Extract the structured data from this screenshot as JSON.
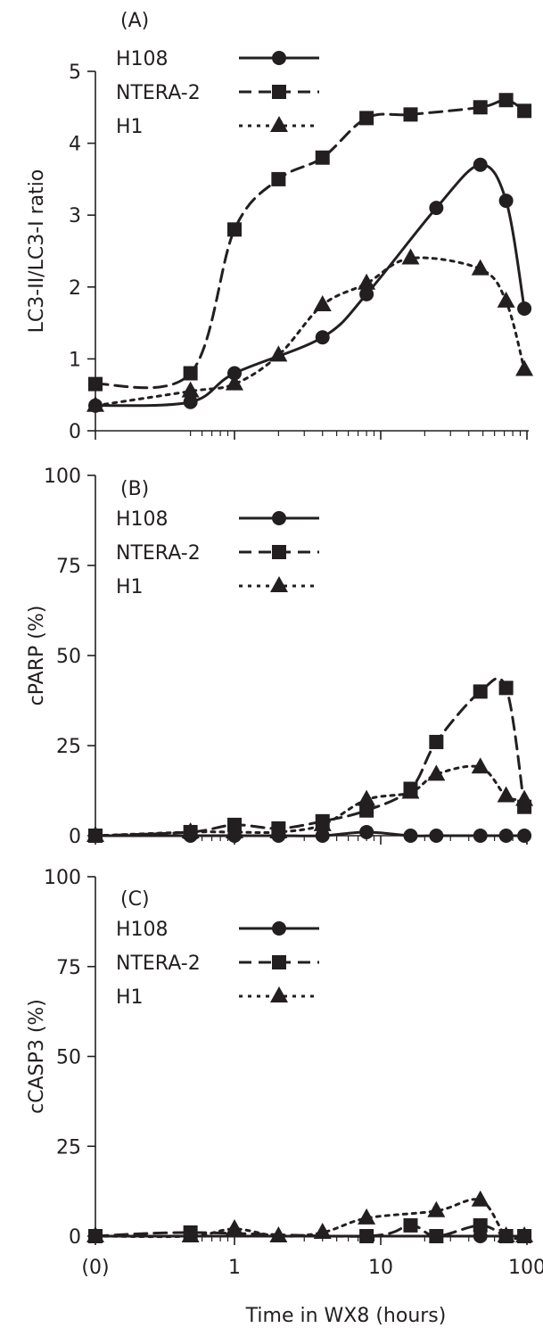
{
  "colors": {
    "ink": "#231f20",
    "background": "#ffffff"
  },
  "xlabel": "Time in WX8 (hours)",
  "x_tick_labels": [
    "(0)",
    "1",
    "10",
    "100"
  ],
  "chart_data": [
    {
      "type": "line",
      "panel_label": "(A)",
      "ylabel": "LC3-II/LC3-I ratio",
      "ylim": [
        0,
        5
      ],
      "y_ticks": [
        0,
        1,
        2,
        3,
        4,
        5
      ],
      "x_scale": "log (0 shown as \"(0)\")",
      "xlim_hours": [
        0,
        100
      ],
      "legend_position": "top-left",
      "series": [
        {
          "name": "H108",
          "marker": "circle",
          "line": "solid",
          "x": [
            0,
            0.5,
            1,
            4,
            8,
            24,
            48,
            72,
            96
          ],
          "y": [
            0.35,
            0.4,
            0.8,
            1.3,
            1.9,
            3.1,
            3.7,
            3.2,
            1.7
          ]
        },
        {
          "name": "NTERA-2",
          "marker": "square",
          "line": "dashed",
          "x": [
            0,
            0.5,
            1,
            2,
            4,
            8,
            16,
            48,
            72,
            96
          ],
          "y": [
            0.65,
            0.8,
            2.8,
            3.5,
            3.8,
            4.35,
            4.4,
            4.5,
            4.6,
            4.45
          ]
        },
        {
          "name": "H1",
          "marker": "triangle",
          "line": "dotted",
          "x": [
            0,
            0.5,
            1,
            2,
            4,
            8,
            16,
            48,
            72,
            96
          ],
          "y": [
            0.35,
            0.55,
            0.65,
            1.05,
            1.75,
            2.05,
            2.4,
            2.25,
            1.8,
            0.85
          ]
        }
      ]
    },
    {
      "type": "line",
      "panel_label": "(B)",
      "ylabel": "cPARP (%)",
      "ylim": [
        0,
        100
      ],
      "y_ticks": [
        0,
        25,
        50,
        75,
        100
      ],
      "x_scale": "log (0 shown as \"(0)\")",
      "xlim_hours": [
        0,
        100
      ],
      "legend_position": "top-left",
      "series": [
        {
          "name": "H108",
          "marker": "circle",
          "line": "solid",
          "x": [
            0,
            0.5,
            1,
            2,
            4,
            8,
            16,
            24,
            48,
            72,
            96
          ],
          "y": [
            0,
            0,
            0,
            0,
            0,
            1,
            0,
            0,
            0,
            0,
            0
          ]
        },
        {
          "name": "NTERA-2",
          "marker": "square",
          "line": "dashed",
          "x": [
            0,
            0.5,
            1,
            2,
            4,
            8,
            16,
            24,
            48,
            72,
            96
          ],
          "y": [
            0,
            1,
            3,
            2,
            4,
            7,
            13,
            26,
            40,
            41,
            8
          ]
        },
        {
          "name": "H1",
          "marker": "triangle",
          "line": "dotted",
          "x": [
            0,
            0.5,
            1,
            2,
            4,
            8,
            16,
            24,
            48,
            72,
            96
          ],
          "y": [
            0,
            1,
            1,
            1,
            3,
            10,
            12,
            17,
            19,
            11,
            10
          ]
        }
      ]
    },
    {
      "type": "line",
      "panel_label": "(C)",
      "ylabel": "cCASP3 (%)",
      "ylim": [
        0,
        100
      ],
      "y_ticks": [
        0,
        25,
        50,
        75,
        100
      ],
      "x_scale": "log (0 shown as \"(0)\")",
      "xlim_hours": [
        0,
        100
      ],
      "legend_position": "top-left",
      "series": [
        {
          "name": "H108",
          "marker": "circle",
          "line": "solid",
          "x": [
            0,
            48,
            96
          ],
          "y": [
            0,
            0,
            0
          ]
        },
        {
          "name": "NTERA-2",
          "marker": "square",
          "line": "dashed",
          "x": [
            0,
            0.5,
            8,
            16,
            24,
            48,
            72,
            96
          ],
          "y": [
            0,
            1,
            0,
            3,
            0,
            3,
            0,
            0
          ]
        },
        {
          "name": "H1",
          "marker": "triangle",
          "line": "dotted",
          "x": [
            0,
            0.5,
            1,
            2,
            4,
            8,
            24,
            48,
            72,
            96
          ],
          "y": [
            0,
            0,
            2,
            0,
            1,
            5,
            7,
            10,
            0,
            0
          ]
        }
      ]
    }
  ]
}
